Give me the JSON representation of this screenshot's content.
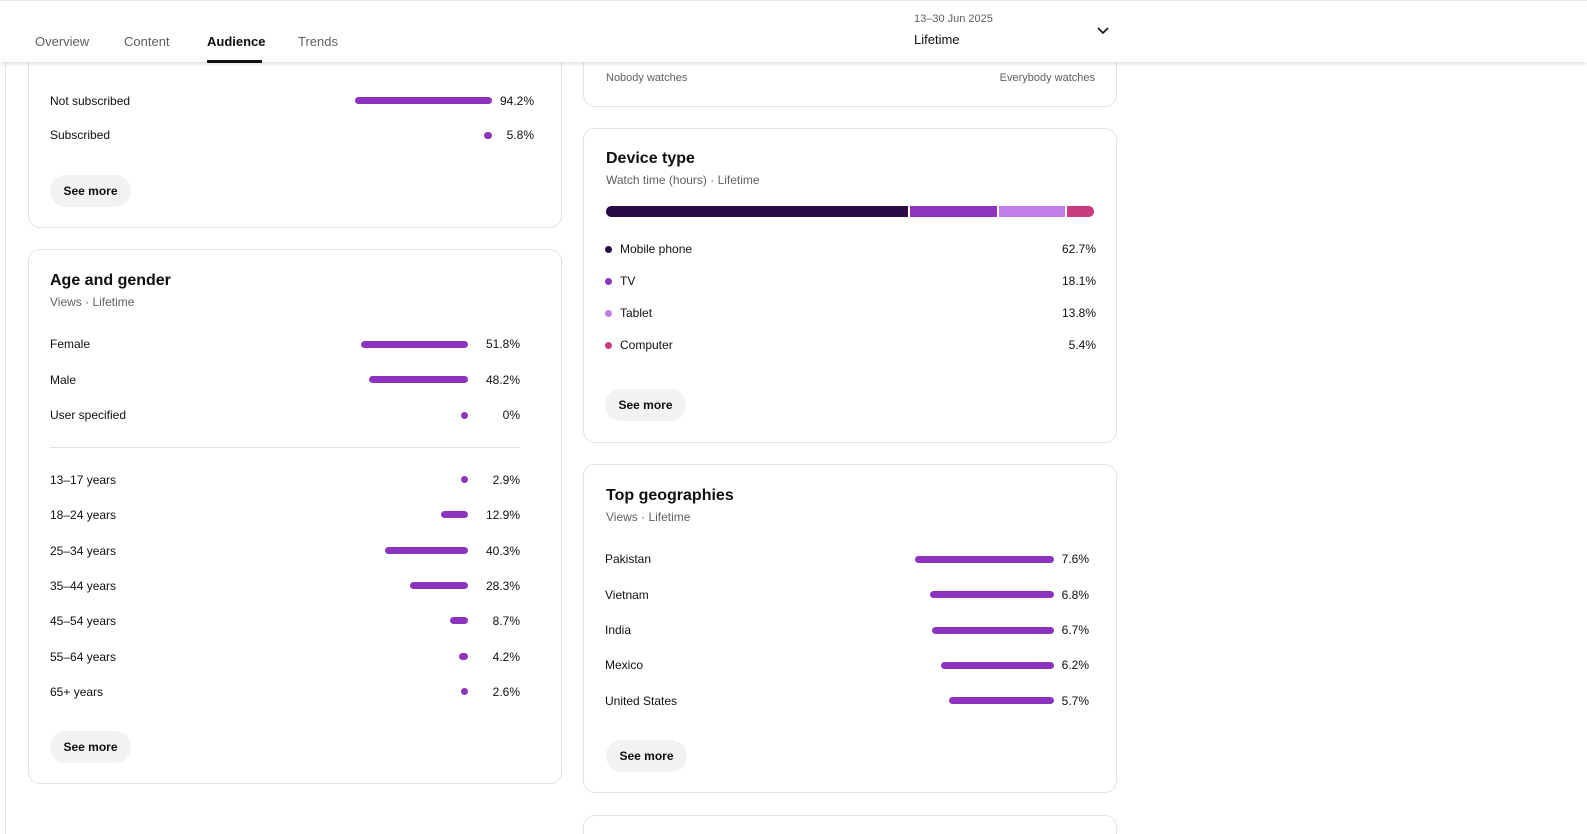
{
  "tabs": [
    {
      "label": "Overview"
    },
    {
      "label": "Content"
    },
    {
      "label": "Audience"
    },
    {
      "label": "Trends"
    }
  ],
  "date_picker": {
    "range": "13–30 Jun 2025",
    "period": "Lifetime",
    "icon": "chevron-down-icon"
  },
  "subscription": {
    "rows": [
      {
        "label": "Not subscribed",
        "value": "94.2%",
        "pct": 94.2
      },
      {
        "label": "Subscribed",
        "value": "5.8%",
        "pct": 5.8
      }
    ],
    "see_more": "See more"
  },
  "watch_scale": {
    "left": "Nobody watches",
    "right": "Everybody watches"
  },
  "age_gender": {
    "title": "Age and gender",
    "subtitle": "Views · Lifetime",
    "gender": [
      {
        "label": "Female",
        "value": "51.8%",
        "pct": 51.8
      },
      {
        "label": "Male",
        "value": "48.2%",
        "pct": 48.2
      },
      {
        "label": "User specified",
        "value": "0%",
        "pct": 0
      }
    ],
    "ages": [
      {
        "label": "13–17 years",
        "value": "2.9%",
        "pct": 2.9
      },
      {
        "label": "18–24 years",
        "value": "12.9%",
        "pct": 12.9
      },
      {
        "label": "25–34 years",
        "value": "40.3%",
        "pct": 40.3
      },
      {
        "label": "35–44 years",
        "value": "28.3%",
        "pct": 28.3
      },
      {
        "label": "45–54 years",
        "value": "8.7%",
        "pct": 8.7
      },
      {
        "label": "55–64 years",
        "value": "4.2%",
        "pct": 4.2
      },
      {
        "label": "65+ years",
        "value": "2.6%",
        "pct": 2.6
      }
    ],
    "see_more": "See more"
  },
  "device": {
    "title": "Device type",
    "subtitle": "Watch time (hours) · Lifetime",
    "items": [
      {
        "label": "Mobile phone",
        "value": "62.7%",
        "pct": 62.7,
        "color": "#2b0b45"
      },
      {
        "label": "TV",
        "value": "18.1%",
        "pct": 18.1,
        "color": "#8c34bd"
      },
      {
        "label": "Tablet",
        "value": "13.8%",
        "pct": 13.8,
        "color": "#c17ee8"
      },
      {
        "label": "Computer",
        "value": "5.4%",
        "pct": 5.4,
        "color": "#c93a7e"
      }
    ],
    "see_more": "See more"
  },
  "geo": {
    "title": "Top geographies",
    "subtitle": "Views · Lifetime",
    "rows": [
      {
        "label": "Pakistan",
        "value": "7.6%",
        "pct": 7.6
      },
      {
        "label": "Vietnam",
        "value": "6.8%",
        "pct": 6.8
      },
      {
        "label": "India",
        "value": "6.7%",
        "pct": 6.7
      },
      {
        "label": "Mexico",
        "value": "6.2%",
        "pct": 6.2
      },
      {
        "label": "United States",
        "value": "5.7%",
        "pct": 5.7
      }
    ],
    "see_more": "See more"
  },
  "colors": {
    "accent": "#8c34bd"
  }
}
